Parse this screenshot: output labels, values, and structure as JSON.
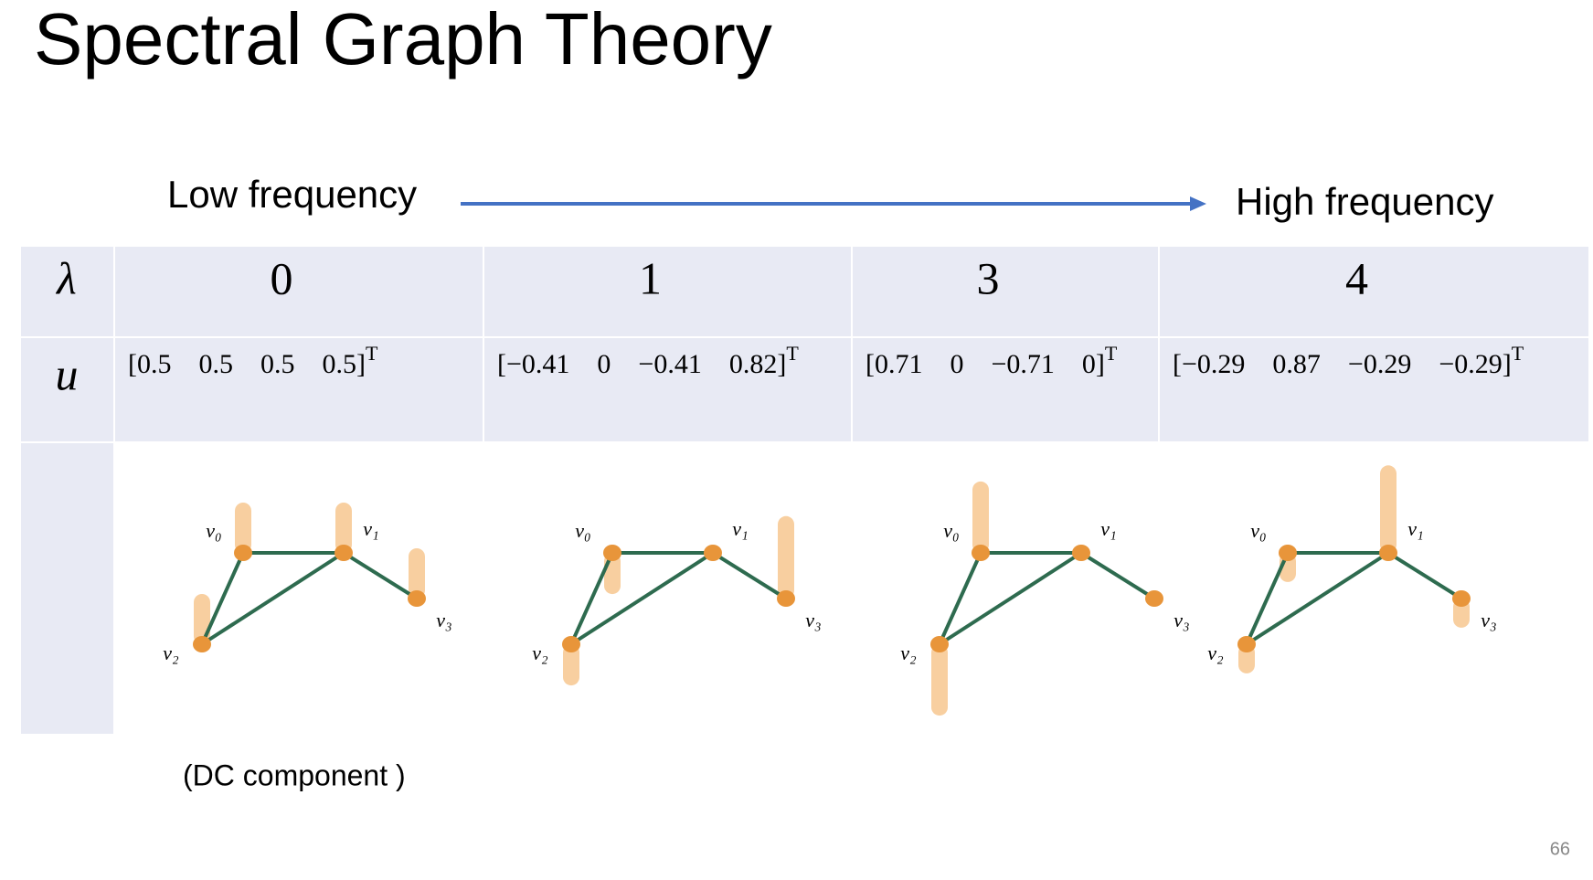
{
  "header": {
    "title": "Spectral Graph Theory"
  },
  "axis": {
    "low": "Low frequency",
    "high": "High frequency"
  },
  "table": {
    "row_labels": [
      "λ",
      "u"
    ],
    "vector_open": "[",
    "vector_close": "]",
    "transpose": "T",
    "columns": [
      {
        "lambda": 0,
        "u": [
          0.5,
          0.5,
          0.5,
          0.5
        ],
        "u_labels": [
          "0.5",
          "0.5",
          "0.5",
          "0.5"
        ]
      },
      {
        "lambda": 1,
        "u": [
          -0.41,
          0,
          -0.41,
          0.82
        ],
        "u_labels": [
          "−0.41",
          "0",
          "−0.41",
          "0.82"
        ]
      },
      {
        "lambda": 3,
        "u": [
          0.71,
          0,
          -0.71,
          0
        ],
        "u_labels": [
          "0.71",
          "0",
          "−0.71",
          "0"
        ]
      },
      {
        "lambda": 4,
        "u": [
          -0.29,
          0.87,
          -0.29,
          -0.29
        ],
        "u_labels": [
          "−0.29",
          "0.87",
          "−0.29",
          "−0.29"
        ]
      }
    ]
  },
  "graph": {
    "node_labels": [
      "v₀",
      "v₁",
      "v₂",
      "v₃"
    ]
  },
  "note": "(DC component )",
  "page_number": "66"
}
